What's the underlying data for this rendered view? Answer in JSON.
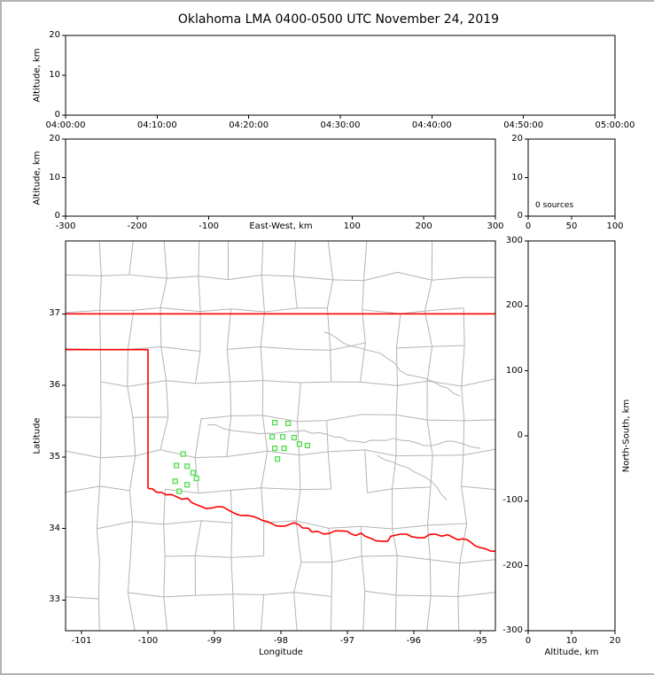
{
  "chart_data": {
    "type": "scatter",
    "title": "Oklahoma LMA 0400-0500 UTC November 24, 2019",
    "legend": "none",
    "grid": false,
    "panels": {
      "time_height": {
        "description": "lightning source altitude vs time (empty, no sources)",
        "xlabel": "",
        "ylabel": "Altitude, km",
        "xlim": [
          0,
          6
        ],
        "ylim": [
          0,
          20
        ],
        "xticks": {
          "values": [
            0,
            1,
            2,
            3,
            4,
            5,
            6
          ],
          "labels": [
            "04:00:00",
            "04:10:00",
            "04:20:00",
            "04:30:00",
            "04:40:00",
            "04:50:00",
            "05:00:00"
          ]
        },
        "yticks": {
          "values": [
            0,
            10,
            20
          ],
          "labels": [
            "0",
            "10",
            "20"
          ]
        },
        "points": []
      },
      "ew_height": {
        "description": "altitude vs east-west distance (empty, no sources)",
        "xlabel": "East-West, km",
        "ylabel": "Altitude, km",
        "xlim": [
          -300,
          300
        ],
        "ylim": [
          0,
          20
        ],
        "xticks": {
          "values": [
            -300,
            -200,
            -100,
            100,
            200,
            300
          ],
          "labels": [
            "-300",
            "-200",
            "-100",
            "100",
            "200",
            "300"
          ]
        },
        "yticks": {
          "values": [
            0,
            10,
            20
          ],
          "labels": [
            "0",
            "10",
            "20"
          ]
        },
        "points": []
      },
      "histogram": {
        "description": "source count vs altitude histogram (empty)",
        "annotation": "0 sources",
        "xlabel": "",
        "ylabel": "",
        "xlim": [
          0,
          100
        ],
        "ylim": [
          0,
          20
        ],
        "xticks": {
          "values": [
            0,
            50,
            100
          ],
          "labels": [
            "0",
            "50",
            "100"
          ]
        },
        "yticks": {
          "values": [
            0,
            10,
            20
          ],
          "labels": [
            "0",
            "10",
            "20"
          ]
        },
        "points": []
      },
      "map": {
        "description": "plan view map of Oklahoma with county lines, state border and LMA stations",
        "xlabel": "Longitude",
        "ylabel": "Latitude",
        "xlim": [
          -101.24,
          -94.77
        ],
        "ylim": [
          32.57,
          38.02
        ],
        "xticks": {
          "values": [
            -101,
            -100,
            -99,
            -98,
            -97,
            -96,
            -95
          ],
          "labels": [
            "-101",
            "-100",
            "-99",
            "-98",
            "-97",
            "-96",
            "-95"
          ]
        },
        "yticks": {
          "values": [
            33,
            34,
            35,
            36,
            37
          ],
          "labels": [
            "33",
            "34",
            "35",
            "36",
            "37"
          ]
        },
        "stations": [
          [
            -98.09,
            35.48
          ],
          [
            -97.89,
            35.47
          ],
          [
            -98.13,
            35.28
          ],
          [
            -97.97,
            35.28
          ],
          [
            -97.8,
            35.27
          ],
          [
            -98.09,
            35.12
          ],
          [
            -97.95,
            35.12
          ],
          [
            -98.05,
            34.97
          ],
          [
            -97.72,
            35.18
          ],
          [
            -97.6,
            35.16
          ],
          [
            -99.47,
            35.04
          ],
          [
            -99.57,
            34.88
          ],
          [
            -99.41,
            34.87
          ],
          [
            -99.32,
            34.78
          ],
          [
            -99.59,
            34.66
          ],
          [
            -99.41,
            34.61
          ],
          [
            -99.27,
            34.7
          ],
          [
            -99.53,
            34.52
          ]
        ],
        "state_border": {
          "north": [
            [
              -101.26,
              37.0
            ],
            [
              -94.75,
              37.0
            ]
          ],
          "panhandle_west": [
            [
              -101.26,
              36.5
            ],
            [
              -100.0,
              36.5
            ],
            [
              -100.0,
              34.56
            ]
          ],
          "red_river": [
            [
              -100.0,
              34.56
            ],
            [
              -99.73,
              34.47
            ],
            [
              -99.4,
              34.42
            ],
            [
              -99.13,
              34.28
            ],
            [
              -98.87,
              34.3
            ],
            [
              -98.6,
              34.18
            ],
            [
              -98.27,
              34.11
            ],
            [
              -98.0,
              34.03
            ],
            [
              -97.8,
              34.08
            ],
            [
              -97.53,
              33.95
            ],
            [
              -97.27,
              33.93
            ],
            [
              -97.0,
              33.96
            ],
            [
              -96.73,
              33.89
            ],
            [
              -96.47,
              33.82
            ],
            [
              -96.2,
              33.92
            ],
            [
              -95.93,
              33.87
            ],
            [
              -95.67,
              33.92
            ],
            [
              -95.4,
              33.87
            ],
            [
              -95.13,
              33.8
            ],
            [
              -94.93,
              33.72
            ],
            [
              -94.74,
              33.68
            ]
          ]
        },
        "rivers": [
          [
            [
              -99.1,
              35.45
            ],
            [
              -98.55,
              35.35
            ],
            [
              -98.1,
              35.33
            ],
            [
              -97.65,
              35.37
            ],
            [
              -97.2,
              35.28
            ],
            [
              -96.75,
              35.2
            ],
            [
              -96.3,
              35.26
            ],
            [
              -95.85,
              35.16
            ],
            [
              -95.4,
              35.22
            ],
            [
              -95.0,
              35.12
            ]
          ],
          [
            [
              -96.55,
              35.02
            ],
            [
              -96.2,
              34.88
            ],
            [
              -95.9,
              34.75
            ],
            [
              -95.65,
              34.58
            ],
            [
              -95.5,
              34.4
            ]
          ],
          [
            [
              -97.35,
              36.75
            ],
            [
              -96.95,
              36.55
            ],
            [
              -96.5,
              36.45
            ],
            [
              -96.1,
              36.15
            ],
            [
              -95.7,
              36.05
            ],
            [
              -95.3,
              35.85
            ]
          ]
        ],
        "points": []
      },
      "ns_height": {
        "description": "north-south distance vs altitude (empty, no sources)",
        "xlabel": "Altitude, km",
        "ylabel": "North-South, km",
        "xlim": [
          0,
          20
        ],
        "ylim": [
          -300,
          300
        ],
        "xticks": {
          "values": [
            0,
            10,
            20
          ],
          "labels": [
            "0",
            "10",
            "20"
          ]
        },
        "yticks": {
          "values": [
            300,
            200,
            100,
            0,
            -100,
            -200,
            -300
          ],
          "labels": [
            "300",
            "200",
            "100",
            "0",
            "-100",
            "-200",
            "-300"
          ]
        },
        "points": []
      }
    }
  },
  "colors": {
    "background": "#ffffff",
    "figure_border": "#b3b3b3",
    "axis": "#000000",
    "county_line": "#b4b4b4",
    "state_border": "#ff0000",
    "station_stroke": "#4fd84f",
    "station_fill": "#e6ffe6"
  }
}
